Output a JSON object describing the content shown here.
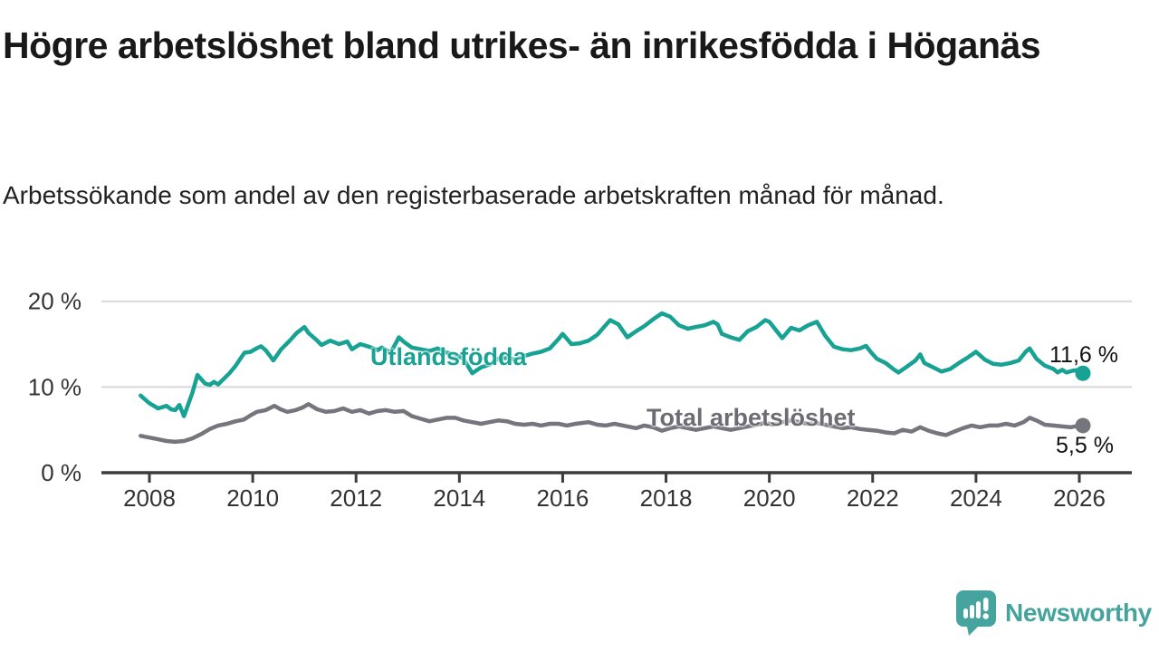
{
  "header": {
    "title": "Högre arbetslöshet bland utrikes- än inrikesfödda i Höganäs",
    "subtitle": "Arbetssökande som andel av den registerbaserade arbetskraften månad för månad."
  },
  "footer": {
    "brand": "Newsworthy",
    "brand_color": "#44a39d",
    "logo_icon": "speech-bubble-bar-chart-icon"
  },
  "chart_data": {
    "type": "line",
    "unit": "%",
    "grid": "horizontal-only",
    "x_axis": {
      "range": [
        2007.8,
        2026.2
      ],
      "ticks": [
        2008,
        2010,
        2012,
        2014,
        2016,
        2018,
        2020,
        2022,
        2024,
        2026
      ]
    },
    "y_axis": {
      "range": [
        0,
        20
      ],
      "ticks": [
        {
          "value": 0,
          "label": "0 %"
        },
        {
          "value": 10,
          "label": "10 %"
        },
        {
          "value": 20,
          "label": "20 %"
        }
      ]
    },
    "colors": {
      "axis": "#3d3d3d",
      "gridline": "#d8d8d8",
      "tick_label": "#333333"
    },
    "series": [
      {
        "name": "Utlandsfödda",
        "color": "#17a294",
        "end_label": "11,6 %",
        "end_value": 11.6,
        "points": [
          [
            2007.83,
            9.0
          ],
          [
            2008.0,
            8.1
          ],
          [
            2008.17,
            7.5
          ],
          [
            2008.33,
            7.8
          ],
          [
            2008.42,
            7.4
          ],
          [
            2008.5,
            7.3
          ],
          [
            2008.58,
            7.9
          ],
          [
            2008.67,
            6.6
          ],
          [
            2008.83,
            9.3
          ],
          [
            2008.93,
            11.4
          ],
          [
            2009.08,
            10.4
          ],
          [
            2009.17,
            10.25
          ],
          [
            2009.25,
            10.6
          ],
          [
            2009.33,
            10.3
          ],
          [
            2009.55,
            11.6
          ],
          [
            2009.66,
            12.4
          ],
          [
            2009.75,
            13.2
          ],
          [
            2009.84,
            14.0
          ],
          [
            2009.96,
            14.1
          ],
          [
            2010.07,
            14.5
          ],
          [
            2010.16,
            14.75
          ],
          [
            2010.25,
            14.3
          ],
          [
            2010.4,
            13.1
          ],
          [
            2010.55,
            14.4
          ],
          [
            2010.7,
            15.3
          ],
          [
            2010.85,
            16.3
          ],
          [
            2011.0,
            17.0
          ],
          [
            2011.08,
            16.3
          ],
          [
            2011.25,
            15.4
          ],
          [
            2011.33,
            14.9
          ],
          [
            2011.5,
            15.4
          ],
          [
            2011.67,
            15.0
          ],
          [
            2011.83,
            15.3
          ],
          [
            2011.92,
            14.4
          ],
          [
            2012.08,
            15.0
          ],
          [
            2012.25,
            14.7
          ],
          [
            2012.42,
            14.3
          ],
          [
            2012.5,
            14.6
          ],
          [
            2012.67,
            14.0
          ],
          [
            2012.83,
            15.8
          ],
          [
            2012.92,
            15.3
          ],
          [
            2013.08,
            14.6
          ],
          [
            2013.25,
            14.4
          ],
          [
            2013.42,
            14.2
          ],
          [
            2013.58,
            14.5
          ],
          [
            2013.75,
            14.0
          ],
          [
            2013.92,
            13.8
          ],
          [
            2014.08,
            13.3
          ],
          [
            2014.25,
            11.6
          ],
          [
            2014.42,
            12.3
          ],
          [
            2014.58,
            12.6
          ],
          [
            2014.75,
            13.3
          ],
          [
            2014.92,
            13.4
          ],
          [
            2015.08,
            13.2
          ],
          [
            2015.25,
            13.6
          ],
          [
            2015.42,
            13.9
          ],
          [
            2015.58,
            14.1
          ],
          [
            2015.75,
            14.5
          ],
          [
            2015.92,
            15.6
          ],
          [
            2016.0,
            16.2
          ],
          [
            2016.17,
            15.0
          ],
          [
            2016.33,
            15.1
          ],
          [
            2016.5,
            15.4
          ],
          [
            2016.67,
            16.1
          ],
          [
            2016.83,
            17.2
          ],
          [
            2016.92,
            17.8
          ],
          [
            2017.08,
            17.3
          ],
          [
            2017.25,
            15.8
          ],
          [
            2017.42,
            16.5
          ],
          [
            2017.58,
            17.1
          ],
          [
            2017.75,
            17.9
          ],
          [
            2017.92,
            18.6
          ],
          [
            2018.08,
            18.2
          ],
          [
            2018.25,
            17.2
          ],
          [
            2018.42,
            16.8
          ],
          [
            2018.58,
            17.0
          ],
          [
            2018.75,
            17.2
          ],
          [
            2018.92,
            17.6
          ],
          [
            2019.0,
            17.3
          ],
          [
            2019.08,
            16.2
          ],
          [
            2019.25,
            15.8
          ],
          [
            2019.42,
            15.5
          ],
          [
            2019.58,
            16.5
          ],
          [
            2019.75,
            17.0
          ],
          [
            2019.92,
            17.8
          ],
          [
            2020.0,
            17.6
          ],
          [
            2020.17,
            16.3
          ],
          [
            2020.25,
            15.7
          ],
          [
            2020.42,
            16.9
          ],
          [
            2020.58,
            16.6
          ],
          [
            2020.75,
            17.2
          ],
          [
            2020.92,
            17.6
          ],
          [
            2021.08,
            16.0
          ],
          [
            2021.25,
            14.7
          ],
          [
            2021.42,
            14.4
          ],
          [
            2021.58,
            14.3
          ],
          [
            2021.75,
            14.5
          ],
          [
            2021.87,
            14.8
          ],
          [
            2021.96,
            14.1
          ],
          [
            2022.08,
            13.3
          ],
          [
            2022.25,
            12.8
          ],
          [
            2022.42,
            12.0
          ],
          [
            2022.5,
            11.7
          ],
          [
            2022.67,
            12.4
          ],
          [
            2022.83,
            13.1
          ],
          [
            2022.92,
            13.8
          ],
          [
            2023.0,
            12.8
          ],
          [
            2023.17,
            12.3
          ],
          [
            2023.33,
            11.8
          ],
          [
            2023.5,
            12.1
          ],
          [
            2023.67,
            12.8
          ],
          [
            2023.83,
            13.4
          ],
          [
            2024.0,
            14.1
          ],
          [
            2024.17,
            13.2
          ],
          [
            2024.33,
            12.7
          ],
          [
            2024.5,
            12.6
          ],
          [
            2024.67,
            12.8
          ],
          [
            2024.83,
            13.1
          ],
          [
            2024.96,
            14.1
          ],
          [
            2025.04,
            14.5
          ],
          [
            2025.17,
            13.3
          ],
          [
            2025.33,
            12.5
          ],
          [
            2025.5,
            12.1
          ],
          [
            2025.58,
            11.7
          ],
          [
            2025.67,
            12.0
          ],
          [
            2025.75,
            11.7
          ],
          [
            2025.87,
            11.9
          ],
          [
            2026.0,
            12.0
          ],
          [
            2026.07,
            11.6
          ]
        ]
      },
      {
        "name": "Total arbetslöshet",
        "color": "#75757d",
        "end_label": "5,5 %",
        "end_value": 5.5,
        "points": [
          [
            2007.83,
            4.3
          ],
          [
            2008.0,
            4.1
          ],
          [
            2008.17,
            3.9
          ],
          [
            2008.33,
            3.7
          ],
          [
            2008.5,
            3.6
          ],
          [
            2008.67,
            3.7
          ],
          [
            2008.83,
            4.0
          ],
          [
            2009.0,
            4.5
          ],
          [
            2009.17,
            5.1
          ],
          [
            2009.33,
            5.5
          ],
          [
            2009.5,
            5.7
          ],
          [
            2009.67,
            6.0
          ],
          [
            2009.83,
            6.2
          ],
          [
            2009.96,
            6.7
          ],
          [
            2010.08,
            7.1
          ],
          [
            2010.25,
            7.3
          ],
          [
            2010.42,
            7.8
          ],
          [
            2010.54,
            7.4
          ],
          [
            2010.67,
            7.1
          ],
          [
            2010.83,
            7.3
          ],
          [
            2010.96,
            7.6
          ],
          [
            2011.08,
            8.0
          ],
          [
            2011.25,
            7.4
          ],
          [
            2011.42,
            7.1
          ],
          [
            2011.58,
            7.2
          ],
          [
            2011.75,
            7.5
          ],
          [
            2011.92,
            7.1
          ],
          [
            2012.08,
            7.3
          ],
          [
            2012.25,
            6.9
          ],
          [
            2012.42,
            7.2
          ],
          [
            2012.58,
            7.3
          ],
          [
            2012.75,
            7.1
          ],
          [
            2012.92,
            7.2
          ],
          [
            2013.08,
            6.6
          ],
          [
            2013.25,
            6.3
          ],
          [
            2013.42,
            6.0
          ],
          [
            2013.58,
            6.2
          ],
          [
            2013.75,
            6.4
          ],
          [
            2013.92,
            6.4
          ],
          [
            2014.08,
            6.1
          ],
          [
            2014.25,
            5.9
          ],
          [
            2014.42,
            5.7
          ],
          [
            2014.58,
            5.9
          ],
          [
            2014.75,
            6.1
          ],
          [
            2014.92,
            6.0
          ],
          [
            2015.08,
            5.7
          ],
          [
            2015.25,
            5.6
          ],
          [
            2015.42,
            5.7
          ],
          [
            2015.58,
            5.5
          ],
          [
            2015.75,
            5.7
          ],
          [
            2015.92,
            5.7
          ],
          [
            2016.08,
            5.5
          ],
          [
            2016.25,
            5.7
          ],
          [
            2016.5,
            5.9
          ],
          [
            2016.67,
            5.6
          ],
          [
            2016.83,
            5.5
          ],
          [
            2017.0,
            5.7
          ],
          [
            2017.17,
            5.5
          ],
          [
            2017.42,
            5.2
          ],
          [
            2017.58,
            5.5
          ],
          [
            2017.75,
            5.3
          ],
          [
            2017.92,
            4.9
          ],
          [
            2018.08,
            5.2
          ],
          [
            2018.25,
            5.4
          ],
          [
            2018.42,
            5.2
          ],
          [
            2018.58,
            5.0
          ],
          [
            2018.75,
            5.2
          ],
          [
            2018.92,
            5.4
          ],
          [
            2019.08,
            5.2
          ],
          [
            2019.25,
            5.0
          ],
          [
            2019.42,
            5.2
          ],
          [
            2019.58,
            5.4
          ],
          [
            2019.75,
            5.6
          ],
          [
            2019.92,
            5.8
          ],
          [
            2020.08,
            5.6
          ],
          [
            2020.25,
            5.9
          ],
          [
            2020.42,
            6.1
          ],
          [
            2020.58,
            5.9
          ],
          [
            2020.75,
            5.7
          ],
          [
            2020.92,
            5.8
          ],
          [
            2021.08,
            5.6
          ],
          [
            2021.25,
            5.4
          ],
          [
            2021.42,
            5.2
          ],
          [
            2021.58,
            5.3
          ],
          [
            2021.75,
            5.1
          ],
          [
            2021.92,
            5.0
          ],
          [
            2022.08,
            4.9
          ],
          [
            2022.25,
            4.7
          ],
          [
            2022.42,
            4.6
          ],
          [
            2022.58,
            5.0
          ],
          [
            2022.75,
            4.8
          ],
          [
            2022.92,
            5.3
          ],
          [
            2023.08,
            4.9
          ],
          [
            2023.25,
            4.6
          ],
          [
            2023.42,
            4.4
          ],
          [
            2023.58,
            4.8
          ],
          [
            2023.75,
            5.2
          ],
          [
            2023.92,
            5.5
          ],
          [
            2024.08,
            5.3
          ],
          [
            2024.25,
            5.5
          ],
          [
            2024.42,
            5.5
          ],
          [
            2024.58,
            5.7
          ],
          [
            2024.75,
            5.5
          ],
          [
            2024.92,
            5.9
          ],
          [
            2025.04,
            6.4
          ],
          [
            2025.17,
            6.1
          ],
          [
            2025.33,
            5.6
          ],
          [
            2025.5,
            5.5
          ],
          [
            2025.67,
            5.4
          ],
          [
            2025.83,
            5.3
          ],
          [
            2026.0,
            5.5
          ],
          [
            2026.07,
            5.5
          ]
        ]
      }
    ]
  }
}
